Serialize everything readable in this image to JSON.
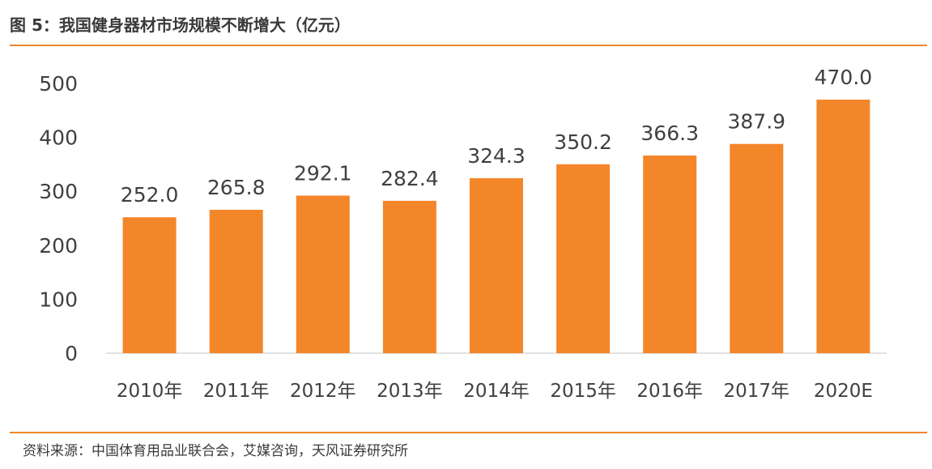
{
  "figure": {
    "title": "图 5：我国健身器材市场规模不断增大（亿元）",
    "source": "资料来源：中国体育用品业联合会，艾媒咨询，天风证券研究所"
  },
  "chart_data": {
    "type": "bar",
    "categories": [
      "2010年",
      "2011年",
      "2012年",
      "2013年",
      "2014年",
      "2015年",
      "2016年",
      "2017年",
      "2020E"
    ],
    "values": [
      252.0,
      265.8,
      292.1,
      282.4,
      324.3,
      350.2,
      366.3,
      387.9,
      470.0
    ],
    "value_labels": [
      "252.0",
      "265.8",
      "292.1",
      "282.4",
      "324.3",
      "350.2",
      "366.3",
      "387.9",
      "470.0"
    ],
    "yticks": [
      "0",
      "100",
      "200",
      "300",
      "400",
      "500"
    ],
    "ylim": [
      0,
      500
    ],
    "xlabel": "",
    "ylabel": "",
    "grid": false,
    "legend": "none",
    "bar_color": "#f4862a"
  }
}
